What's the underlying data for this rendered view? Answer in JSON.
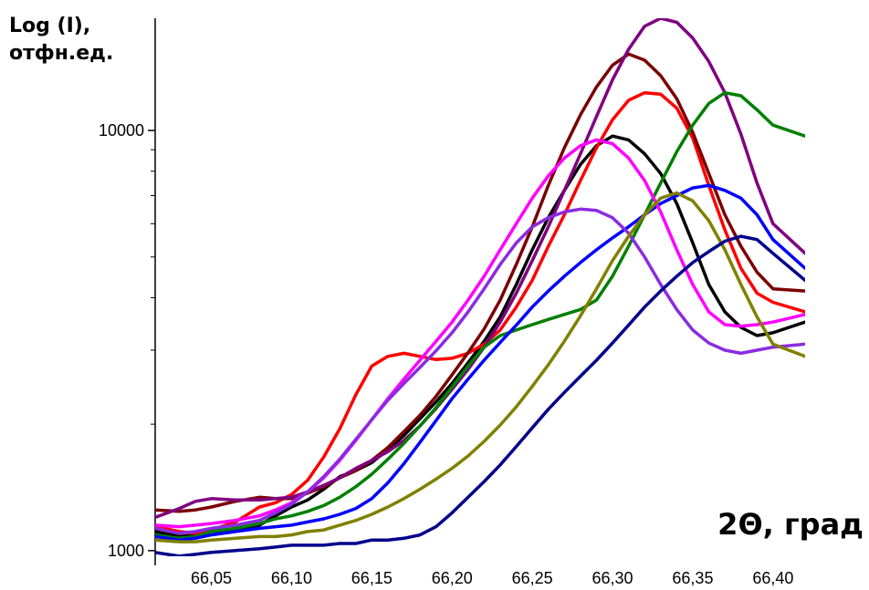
{
  "chart_data": {
    "type": "line",
    "ylabel": "Log (I),\nотфн.ед.",
    "xlabel": "2Θ, град",
    "x_ticks": [
      "66,05",
      "66,10",
      "66,15",
      "66,20",
      "66,25",
      "66,30",
      "66,35",
      "66,40"
    ],
    "x_tick_values": [
      66.05,
      66.1,
      66.15,
      66.2,
      66.25,
      66.3,
      66.35,
      66.4
    ],
    "y_ticks": [
      "1000",
      "10000"
    ],
    "y_tick_values": [
      1000,
      10000
    ],
    "y_scale": "log",
    "xlim": [
      66.015,
      66.42
    ],
    "ylim": [
      960,
      18500
    ],
    "grid": false,
    "x": [
      66.015,
      66.03,
      66.04,
      66.05,
      66.065,
      66.08,
      66.09,
      66.1,
      66.11,
      66.12,
      66.13,
      66.14,
      66.15,
      66.16,
      66.17,
      66.18,
      66.19,
      66.2,
      66.21,
      66.22,
      66.23,
      66.24,
      66.25,
      66.26,
      66.27,
      66.28,
      66.29,
      66.3,
      66.31,
      66.32,
      66.33,
      66.34,
      66.35,
      66.36,
      66.37,
      66.38,
      66.39,
      66.4,
      66.42
    ],
    "series": [
      {
        "color": "#000000",
        "values": [
          1110,
          1080,
          1090,
          1110,
          1120,
          1150,
          1210,
          1270,
          1320,
          1400,
          1500,
          1550,
          1620,
          1740,
          1880,
          2060,
          2260,
          2500,
          2800,
          3150,
          3600,
          4300,
          5200,
          6200,
          7200,
          8300,
          9200,
          9700,
          9500,
          8800,
          7900,
          6700,
          5400,
          4300,
          3700,
          3400,
          3250,
          3300,
          3500
        ]
      },
      {
        "color": "#ff0000",
        "values": [
          1140,
          1110,
          1100,
          1120,
          1170,
          1270,
          1300,
          1360,
          1470,
          1670,
          1950,
          2350,
          2750,
          2900,
          2950,
          2900,
          2850,
          2870,
          2950,
          3100,
          3350,
          3800,
          4400,
          5300,
          6300,
          7600,
          9100,
          10600,
          11800,
          12300,
          12200,
          11300,
          9600,
          7400,
          5800,
          4700,
          4100,
          3900,
          3700
        ]
      },
      {
        "color": "#7b0000",
        "values": [
          1250,
          1240,
          1250,
          1270,
          1310,
          1340,
          1330,
          1330,
          1370,
          1420,
          1490,
          1550,
          1640,
          1760,
          1920,
          2100,
          2330,
          2620,
          2960,
          3370,
          3950,
          4800,
          5900,
          7400,
          9100,
          10900,
          12700,
          14300,
          15200,
          14700,
          13500,
          11900,
          9900,
          7900,
          6300,
          5300,
          4600,
          4200,
          4150
        ]
      },
      {
        "color": "#800080",
        "values": [
          1200,
          1260,
          1310,
          1330,
          1320,
          1320,
          1330,
          1340,
          1380,
          1430,
          1490,
          1570,
          1640,
          1720,
          1830,
          1980,
          2180,
          2420,
          2700,
          3050,
          3500,
          4100,
          4900,
          5900,
          7200,
          8800,
          10800,
          13200,
          15600,
          17700,
          18500,
          18100,
          16600,
          14600,
          12300,
          9800,
          7500,
          6000,
          5100
        ]
      },
      {
        "color": "#008000",
        "values": [
          1090,
          1070,
          1080,
          1110,
          1130,
          1160,
          1190,
          1210,
          1240,
          1280,
          1340,
          1420,
          1520,
          1650,
          1800,
          1980,
          2190,
          2450,
          2750,
          3050,
          3250,
          3350,
          3450,
          3550,
          3650,
          3750,
          3950,
          4500,
          5300,
          6300,
          7500,
          8900,
          10300,
          11600,
          12300,
          12100,
          11200,
          10300,
          9700
        ]
      },
      {
        "color": "#0000ff",
        "values": [
          1080,
          1060,
          1070,
          1090,
          1110,
          1130,
          1140,
          1150,
          1170,
          1190,
          1220,
          1260,
          1330,
          1450,
          1610,
          1810,
          2040,
          2300,
          2560,
          2840,
          3130,
          3440,
          3800,
          4150,
          4500,
          4850,
          5200,
          5550,
          5900,
          6300,
          6700,
          7000,
          7300,
          7400,
          7200,
          6900,
          6300,
          5500,
          4700
        ]
      },
      {
        "color": "#ff00ff",
        "values": [
          1150,
          1140,
          1150,
          1160,
          1180,
          1210,
          1250,
          1300,
          1380,
          1490,
          1640,
          1830,
          2050,
          2300,
          2560,
          2840,
          3150,
          3500,
          3950,
          4500,
          5200,
          6000,
          6900,
          7800,
          8600,
          9200,
          9500,
          9300,
          8600,
          7600,
          6400,
          5200,
          4300,
          3700,
          3450,
          3420,
          3450,
          3500,
          3650
        ]
      },
      {
        "color": "#8a2be2",
        "values": [
          1130,
          1100,
          1110,
          1130,
          1150,
          1180,
          1230,
          1290,
          1380,
          1500,
          1650,
          1840,
          2050,
          2280,
          2500,
          2730,
          2990,
          3300,
          3700,
          4200,
          4800,
          5400,
          5900,
          6200,
          6400,
          6500,
          6450,
          6200,
          5700,
          5000,
          4300,
          3750,
          3350,
          3120,
          3000,
          2950,
          3000,
          3050,
          3100
        ]
      },
      {
        "color": "#808000",
        "values": [
          1060,
          1050,
          1050,
          1060,
          1070,
          1080,
          1080,
          1090,
          1110,
          1120,
          1150,
          1180,
          1220,
          1270,
          1330,
          1400,
          1480,
          1570,
          1680,
          1820,
          1990,
          2200,
          2460,
          2770,
          3150,
          3620,
          4200,
          4900,
          5600,
          6300,
          6900,
          7100,
          6800,
          6100,
          5200,
          4300,
          3600,
          3100,
          2900
        ]
      },
      {
        "color": "#00008b",
        "values": [
          990,
          970,
          980,
          990,
          1000,
          1010,
          1020,
          1030,
          1030,
          1030,
          1040,
          1040,
          1060,
          1060,
          1070,
          1090,
          1140,
          1230,
          1340,
          1460,
          1600,
          1770,
          1960,
          2170,
          2380,
          2600,
          2840,
          3120,
          3440,
          3800,
          4150,
          4500,
          4850,
          5150,
          5450,
          5600,
          5500,
          5100,
          4400
        ]
      }
    ]
  }
}
